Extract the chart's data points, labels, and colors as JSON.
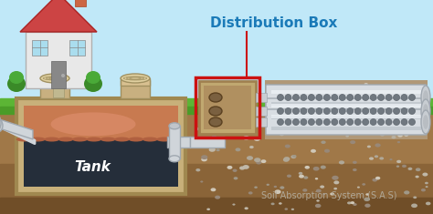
{
  "figsize": [
    4.74,
    2.35
  ],
  "dpi": 100,
  "sky_color": "#c0e8f8",
  "grass_top_color": "#5cb535",
  "grass_bot_color": "#4a9c28",
  "soil_color": "#a07848",
  "soil_mid_color": "#8a6438",
  "soil_dark_color": "#704e28",
  "tank_outer_color": "#c8b07a",
  "tank_outer_edge": "#a08850",
  "tank_upper_fill": "#c87a50",
  "tank_lower_fill": "#2a3040",
  "tank_label": "Tank",
  "tank_label_color": "#ffffff",
  "dist_box_color": "#c0a870",
  "dist_box_edge": "#a08050",
  "dist_box_interior": "#b09060",
  "dist_box_red_border": "#cc1111",
  "pipe_color": "#d8dde2",
  "pipe_edge": "#a0a8b0",
  "pipe_hole_color": "#707880",
  "pipe_highlight": "#f0f4f8",
  "title": "Distribution Box",
  "title_color": "#1a7ab8",
  "title_fontsize": 11,
  "sas_label": "Soil Absorption System (S.A.S)",
  "sas_label_color": "#b0a898",
  "sas_fontsize": 7,
  "house_wall": "#e8e8e8",
  "house_roof": "#cc4444",
  "house_chimney": "#cc6644",
  "house_door": "#888888",
  "house_window": "#aaddee",
  "bush_color": "#3a8a28",
  "lid_color": "#c8b080",
  "lid_edge": "#a09060",
  "inlet_pipe_color": "#d0d5da",
  "outlet_pipe_color": "#d0d5da"
}
